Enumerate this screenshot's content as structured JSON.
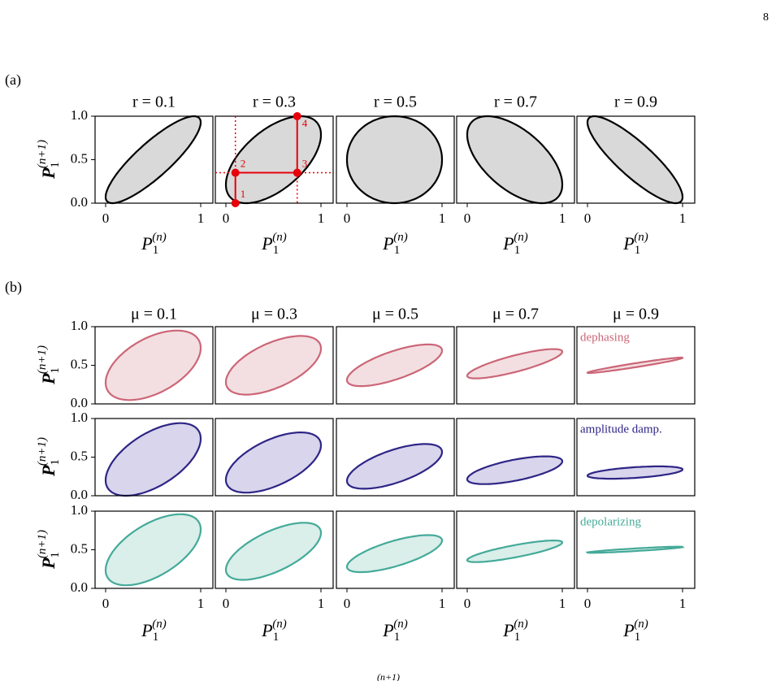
{
  "page_number": "8",
  "panel_a": {
    "label": "(a)",
    "titles": [
      "r = 0.1",
      "r = 0.3",
      "r = 0.5",
      "r = 0.7",
      "r = 0.9"
    ],
    "point_labels": [
      "1",
      "2",
      "3",
      "4"
    ]
  },
  "panel_b": {
    "label": "(b)",
    "titles": [
      "μ = 0.1",
      "μ = 0.3",
      "μ = 0.5",
      "μ = 0.7",
      "μ = 0.9"
    ],
    "row_labels": [
      "dephasing",
      "amplitude damp.",
      "depolarizing"
    ]
  },
  "axes": {
    "yticks": [
      "1.0",
      "0.5",
      "0.0"
    ],
    "xticks": [
      "0",
      "1"
    ],
    "ylabel": {
      "base": "P",
      "sub": "1",
      "sup": "(n+1)"
    },
    "xlabel": {
      "base": "P",
      "sub": "1",
      "sup": "(n)"
    }
  },
  "caption_fragment": "(n+1)"
}
